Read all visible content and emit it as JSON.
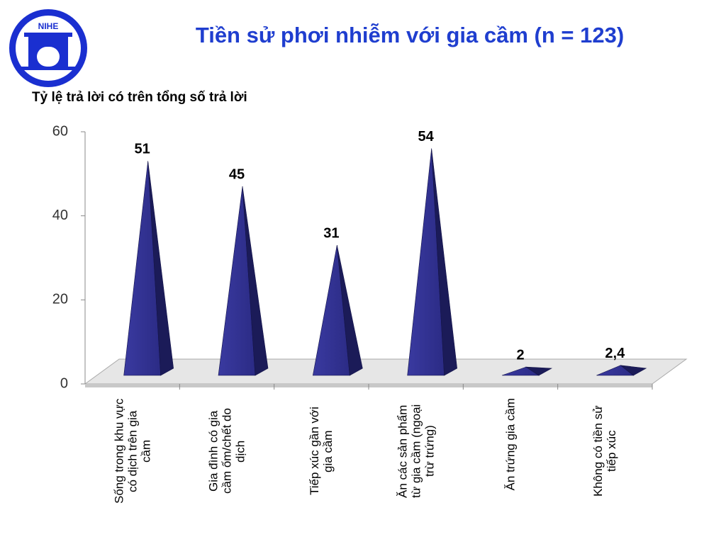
{
  "logo_text": "NIHE",
  "chart_data": {
    "type": "pyramid-bar",
    "title": "Tiền sử phơi nhiễm với gia cầm (n = 123)",
    "y_label": "Tỷ lệ trả lời có trên tổng số trả lời",
    "categories": [
      "Sống trong khu vực có dịch trên gia cầm",
      "Gia đình có gia cầm ốm/chết do dịch",
      "Tiếp xúc gần với gia cầm",
      "Ăn các sản phẩm từ gia cầm (ngoại trừ trứng)",
      "Ăn trứng gia cầm",
      "Không có tiền sử tiếp xúc"
    ],
    "values": [
      51,
      45,
      31,
      54,
      2,
      2.4
    ],
    "value_labels": [
      "51",
      "45",
      "31",
      "54",
      "2",
      "2,4"
    ],
    "color": "#2b2b85",
    "ylim": [
      0,
      60
    ],
    "yticks": [
      0,
      20,
      40,
      60
    ]
  }
}
